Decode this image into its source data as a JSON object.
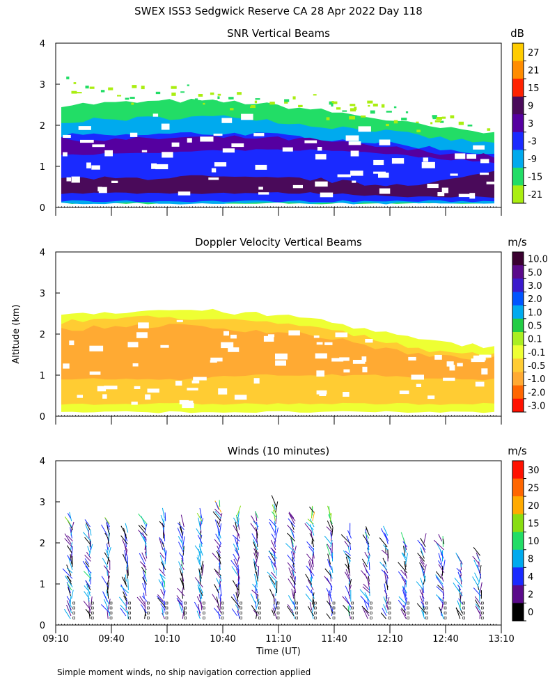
{
  "figure": {
    "title": "SWEX ISS3 Sedgwick Reserve CA  28 Apr 2022 Day 118",
    "ylabel": "Altitude (km)",
    "xlabel": "Time (UT)",
    "footnote": "Simple moment winds, no ship navigation correction applied"
  },
  "chart_data": [
    {
      "type": "heatmap",
      "title": "SNR Vertical Beams",
      "colorbar_unit": "dB",
      "colorbar_labels": [
        "27",
        "21",
        "15",
        "9",
        "3",
        "-3",
        "-9",
        "-15",
        "-21"
      ],
      "colorbar_colors": [
        "#ffcc00",
        "#ff8c00",
        "#ff2200",
        "#4a0a5a",
        "#5500a0",
        "#1a2aff",
        "#00aaee",
        "#22dd66",
        "#aaee11"
      ],
      "x_range": [
        "09:10",
        "13:10"
      ],
      "y_range": [
        0,
        4
      ],
      "y_ticks": [
        "0",
        "1",
        "2",
        "3",
        "4"
      ],
      "x_ticks": [
        "09:10",
        "09:40",
        "10:10",
        "10:40",
        "11:10",
        "11:40",
        "12:10",
        "12:40",
        "13:10"
      ],
      "layers": [
        {
          "bottom": [
            0.1,
            0.1,
            0.1,
            0.1,
            0.1,
            0.1,
            0.1,
            0.1
          ],
          "top": [
            2.5,
            2.55,
            2.6,
            2.55,
            2.4,
            2.2,
            1.95,
            1.8
          ],
          "color": "#22dd66"
        },
        {
          "bottom": [
            0.1,
            0.1,
            0.1,
            0.1,
            0.1,
            0.1,
            0.1,
            0.1
          ],
          "top": [
            2.1,
            2.15,
            2.2,
            2.2,
            2.0,
            1.9,
            1.7,
            1.55
          ],
          "color": "#00aaee"
        },
        {
          "bottom": [
            0.15,
            0.15,
            0.15,
            0.15,
            0.15,
            0.15,
            0.15,
            0.15
          ],
          "top": [
            1.75,
            1.75,
            1.8,
            1.8,
            1.7,
            1.6,
            1.45,
            1.3
          ],
          "color": "#1a2aff"
        },
        {
          "bottom": [
            1.3,
            1.3,
            1.35,
            1.4,
            1.4,
            1.35,
            1.2,
            1.1
          ],
          "top": [
            1.65,
            1.65,
            1.7,
            1.7,
            1.65,
            1.5,
            1.35,
            1.25
          ],
          "color": "#5500a0"
        },
        {
          "bottom": [
            0.35,
            0.35,
            0.35,
            0.35,
            0.35,
            0.3,
            0.25,
            0.25
          ],
          "top": [
            0.7,
            0.7,
            0.75,
            0.7,
            0.7,
            0.55,
            0.6,
            0.85
          ],
          "color": "#4a0a5a"
        }
      ],
      "noise_top": [
        3.2,
        3.1,
        3.0,
        2.9,
        2.8,
        2.6,
        2.3,
        2.2
      ]
    },
    {
      "type": "heatmap",
      "title": "Doppler Velocity Vertical Beams",
      "colorbar_unit": "m/s",
      "colorbar_labels": [
        "10.0",
        "5.0",
        "3.0",
        "2.0",
        "1.0",
        "0.5",
        "0.1",
        "-0.1",
        "-0.5",
        "-1.0",
        "-2.0",
        "-3.0"
      ],
      "colorbar_colors": [
        "#3a0030",
        "#5a0a8a",
        "#3a1acc",
        "#0055ff",
        "#00aaee",
        "#22cc44",
        "#aaee22",
        "#eeff33",
        "#ffcc33",
        "#ffaa33",
        "#ff6600",
        "#ff1100"
      ],
      "x_range": [
        "09:10",
        "13:10"
      ],
      "y_range": [
        0,
        4
      ],
      "y_ticks": [
        "0",
        "1",
        "2",
        "3",
        "4"
      ],
      "x_ticks": [
        "09:10",
        "09:40",
        "10:10",
        "10:40",
        "11:10",
        "11:40",
        "12:10",
        "12:40",
        "13:10"
      ],
      "layers": [
        {
          "bottom": [
            0.1,
            0.1,
            0.1,
            0.1,
            0.1,
            0.1,
            0.1,
            0.1
          ],
          "top": [
            2.5,
            2.55,
            2.6,
            2.5,
            2.4,
            2.1,
            1.8,
            1.7
          ],
          "color": "#eeff33"
        },
        {
          "bottom": [
            0.3,
            0.3,
            0.3,
            0.3,
            0.3,
            0.3,
            0.3,
            0.3
          ],
          "top": [
            2.3,
            2.4,
            2.4,
            2.3,
            2.2,
            1.9,
            1.6,
            1.5
          ],
          "color": "#ffcc33"
        },
        {
          "bottom": [
            0.9,
            0.9,
            0.9,
            1.0,
            1.0,
            1.0,
            0.9,
            0.9
          ],
          "top": [
            2.1,
            2.2,
            2.2,
            2.1,
            2.0,
            1.7,
            1.45,
            1.4
          ],
          "color": "#ffaa33"
        }
      ]
    },
    {
      "type": "scatter",
      "title": "Winds (10 minutes)",
      "colorbar_unit": "m/s",
      "colorbar_labels": [
        "30",
        "25",
        "20",
        "15",
        "10",
        "8",
        "4",
        "2",
        "0"
      ],
      "colorbar_colors": [
        "#ff1100",
        "#ff6600",
        "#ffaa00",
        "#88dd11",
        "#22dd66",
        "#00aaee",
        "#1a2aff",
        "#5a0a8a",
        "#000000"
      ],
      "x_range": [
        "09:10",
        "13:10"
      ],
      "y_range": [
        0,
        4
      ],
      "y_ticks": [
        "0",
        "1",
        "2",
        "3",
        "4"
      ],
      "x_ticks": [
        "09:10",
        "09:40",
        "10:10",
        "10:40",
        "11:10",
        "11:40",
        "12:10",
        "12:40",
        "13:10"
      ],
      "profile_times": [
        "09:20",
        "09:30",
        "09:40",
        "09:50",
        "10:00",
        "10:10",
        "10:20",
        "10:30",
        "10:40",
        "10:50",
        "11:00",
        "11:10",
        "11:20",
        "11:30",
        "11:40",
        "11:50",
        "12:00",
        "12:10",
        "12:20",
        "12:30",
        "12:40",
        "12:50",
        "13:00"
      ],
      "profile_tops": [
        2.6,
        2.4,
        2.5,
        2.3,
        2.5,
        2.6,
        2.4,
        2.6,
        2.9,
        2.7,
        2.6,
        2.9,
        2.6,
        2.8,
        2.7,
        2.2,
        2.3,
        2.2,
        2.0,
        2.0,
        2.1,
        1.6,
        1.7
      ],
      "speed_range": [
        0,
        30
      ]
    }
  ]
}
